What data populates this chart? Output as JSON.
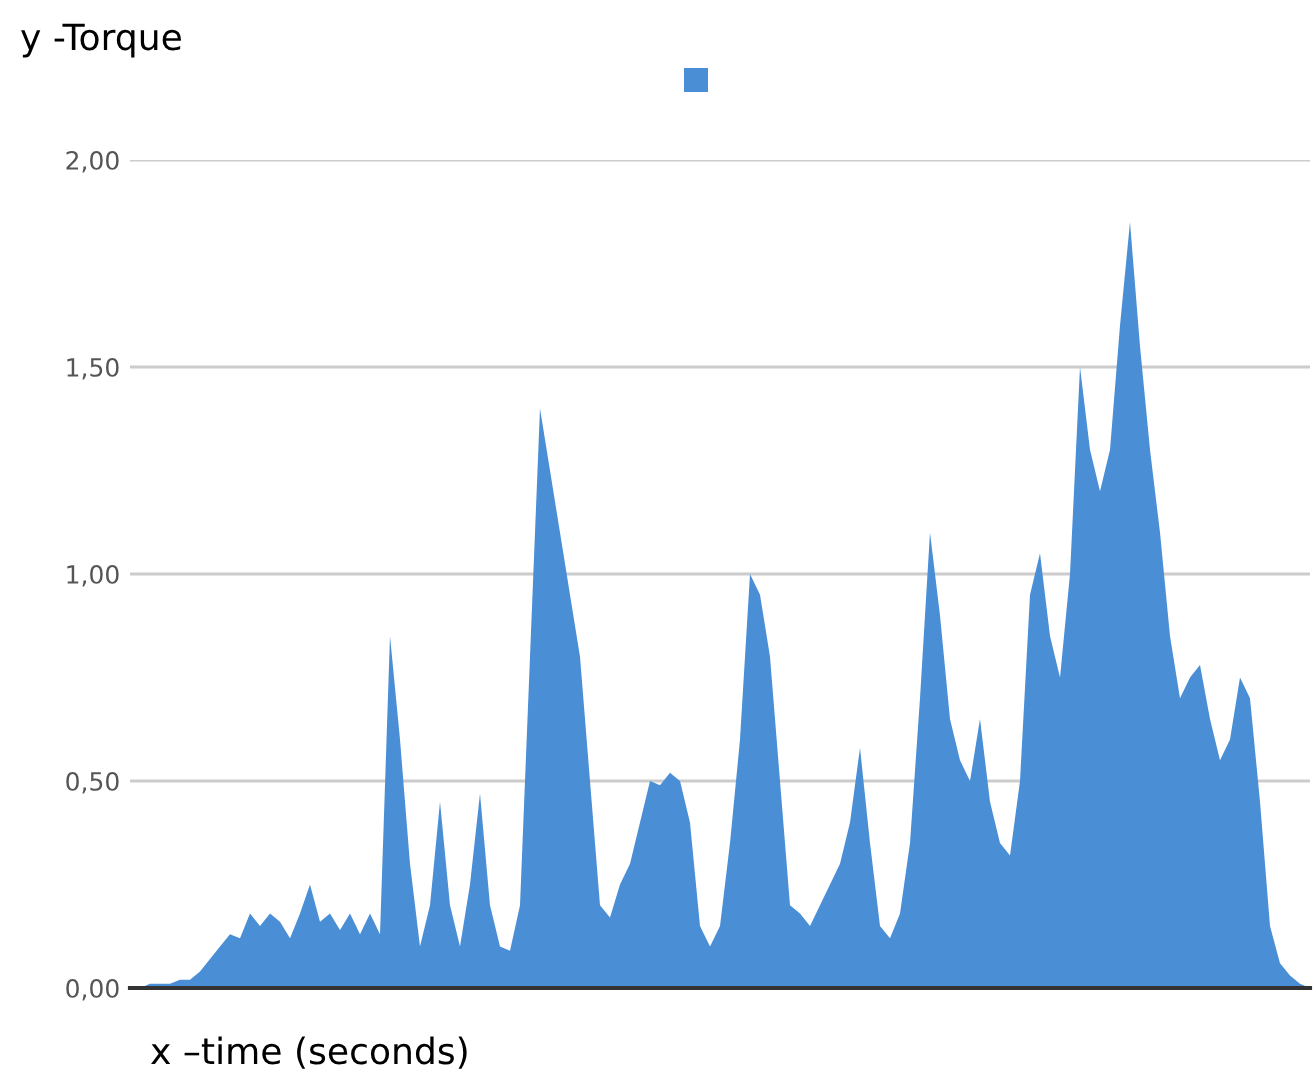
{
  "chart_data": {
    "type": "area",
    "ylabel": "y -Torque",
    "xlabel": "x –time (seconds)",
    "categories": [
      null,
      null,
      null,
      null,
      null,
      null,
      null,
      null,
      null,
      null,
      null,
      null,
      null,
      null,
      null,
      null,
      null,
      null,
      null,
      null,
      null,
      null,
      null,
      null,
      null,
      null,
      null,
      null,
      null,
      null,
      null,
      null,
      null,
      null,
      null,
      null,
      null,
      null,
      null,
      null,
      null,
      null,
      null,
      null,
      null,
      null,
      null,
      null,
      null,
      null,
      null,
      null,
      null,
      null,
      null,
      null,
      null,
      null,
      null,
      null,
      null,
      null,
      null,
      null,
      null,
      null,
      null,
      null,
      null,
      null,
      null,
      null,
      null,
      null,
      null,
      null,
      null,
      null,
      null,
      null,
      null,
      null,
      null,
      null,
      null,
      null,
      null,
      null,
      null,
      null,
      null,
      null,
      null,
      null,
      null,
      null,
      null,
      null,
      null,
      null,
      null,
      null,
      null,
      null,
      null,
      null,
      null,
      null,
      null,
      null,
      null,
      null,
      null,
      null,
      null,
      null,
      null,
      null,
      null
    ],
    "series": [
      {
        "color": "#4a8fd6",
        "values": [
          0,
          0,
          0.01,
          0.01,
          0.01,
          0.02,
          0.02,
          0.04,
          0.07,
          0.1,
          0.13,
          0.12,
          0.18,
          0.15,
          0.18,
          0.16,
          0.12,
          0.18,
          0.25,
          0.16,
          0.18,
          0.14,
          0.18,
          0.13,
          0.18,
          0.13,
          0.85,
          0.6,
          0.3,
          0.1,
          0.2,
          0.45,
          0.2,
          0.1,
          0.25,
          0.47,
          0.2,
          0.1,
          0.09,
          0.2,
          0.8,
          1.4,
          1.25,
          1.1,
          0.95,
          0.8,
          0.5,
          0.2,
          0.17,
          0.25,
          0.3,
          0.4,
          0.5,
          0.49,
          0.52,
          0.5,
          0.4,
          0.15,
          0.1,
          0.15,
          0.35,
          0.6,
          1.0,
          0.95,
          0.8,
          0.5,
          0.2,
          0.18,
          0.15,
          0.2,
          0.25,
          0.3,
          0.4,
          0.58,
          0.35,
          0.15,
          0.12,
          0.18,
          0.35,
          0.7,
          1.1,
          0.9,
          0.65,
          0.55,
          0.5,
          0.65,
          0.45,
          0.35,
          0.32,
          0.5,
          0.95,
          1.05,
          0.85,
          0.75,
          1.0,
          1.5,
          1.3,
          1.2,
          1.3,
          1.6,
          1.85,
          1.55,
          1.3,
          1.1,
          0.85,
          0.7,
          0.75,
          0.78,
          0.65,
          0.55,
          0.6,
          0.75,
          0.7,
          0.45,
          0.15,
          0.06,
          0.03,
          0.01,
          0
        ]
      }
    ],
    "ylim": [
      0,
      2.0
    ],
    "yticks": [
      {
        "value": 0,
        "label": "0,00"
      },
      {
        "value": 0.5,
        "label": "0,50"
      },
      {
        "value": 1.0,
        "label": "1,00"
      },
      {
        "value": 1.5,
        "label": "1,50"
      },
      {
        "value": 2.0,
        "label": "2,00"
      }
    ],
    "grid": "y"
  }
}
